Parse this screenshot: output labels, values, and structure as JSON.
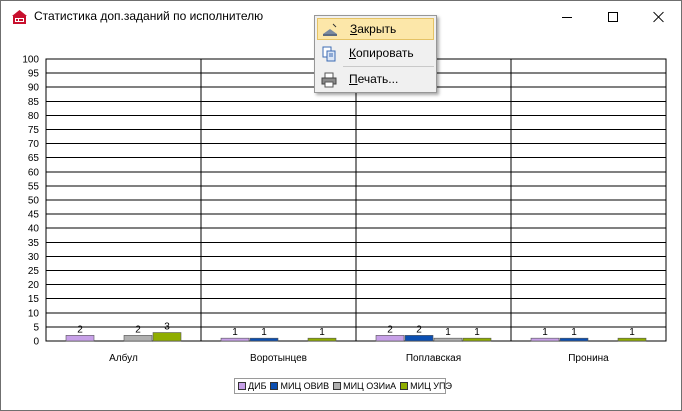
{
  "window": {
    "title": "Статистика доп.заданий по исполнителю",
    "app_icon": "app-logo-icon",
    "controls": {
      "minimize_icon": "minimize-icon",
      "maximize_icon": "maximize-icon",
      "close_icon": "close-icon"
    }
  },
  "context_menu": {
    "items": [
      {
        "label": "Закрыть",
        "accel": "З",
        "rest": "акрыть",
        "icon": "close-window-icon",
        "highlighted": true
      },
      {
        "label": "Копировать",
        "accel": "К",
        "rest": "опировать",
        "icon": "copy-icon",
        "highlighted": false
      },
      {
        "label": "Печать...",
        "accel": "П",
        "rest": "ечать...",
        "icon": "printer-icon",
        "highlighted": false
      }
    ],
    "highlight_color": "#fce7a9"
  },
  "chart_data": {
    "type": "bar",
    "categories": [
      "Албул",
      "Воротынцев",
      "Поплавская",
      "Пронина"
    ],
    "ylim": [
      0,
      100
    ],
    "ytick_step": 5,
    "yticks": [
      "0",
      "5",
      "10",
      "15",
      "20",
      "25",
      "30",
      "35",
      "40",
      "45",
      "50",
      "55",
      "60",
      "65",
      "70",
      "75",
      "80",
      "85",
      "90",
      "95",
      "100"
    ],
    "grid": true,
    "legend_position": "bottom",
    "series": [
      {
        "name": "ДИБ",
        "color": "#c7a0e8",
        "values": [
          2,
          1,
          2,
          1
        ]
      },
      {
        "name": "МИЦ ОВИВ",
        "color": "#0b4fb2",
        "values": [
          null,
          1,
          2,
          1
        ]
      },
      {
        "name": "МИЦ ОЗИиА",
        "color": "#b0b0b0",
        "values": [
          2,
          null,
          1,
          null
        ]
      },
      {
        "name": "МИЦ УПЭ",
        "color": "#8fad00",
        "values": [
          3,
          1,
          1,
          1
        ]
      }
    ]
  }
}
